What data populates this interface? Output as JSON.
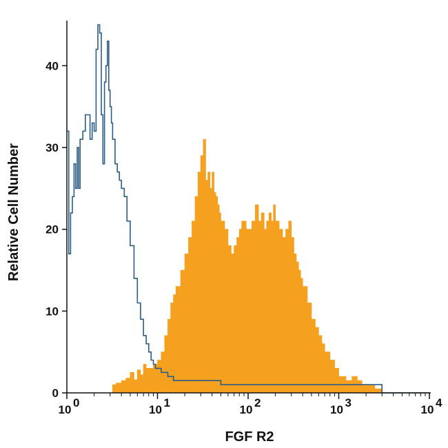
{
  "chart_data": {
    "type": "area",
    "xlabel": "FGF R2",
    "ylabel": "Relative Cell Number",
    "x_scale": "log",
    "xlim": [
      1,
      10000
    ],
    "ylim": [
      0,
      45
    ],
    "x_ticks": [
      {
        "value": 1,
        "base": "10",
        "exp": "0"
      },
      {
        "value": 10,
        "base": "10",
        "exp": "1"
      },
      {
        "value": 100,
        "base": "10",
        "exp": "2"
      },
      {
        "value": 1000,
        "base": "10",
        "exp": "3"
      },
      {
        "value": 10000,
        "base": "10",
        "exp": "4"
      }
    ],
    "y_ticks": [
      0,
      10,
      20,
      30,
      40
    ],
    "grid": false,
    "series": [
      {
        "kind": "filled",
        "color": "#f5a01f",
        "x": [
          3.2,
          3.5,
          4,
          4.5,
          5,
          5.5,
          6,
          6.5,
          7,
          7.5,
          8,
          9,
          10,
          11,
          12,
          13,
          14,
          15,
          16,
          18,
          20,
          22,
          24,
          26,
          28,
          30,
          32,
          34,
          36,
          38,
          40,
          42,
          44,
          46,
          48,
          50,
          55,
          60,
          65,
          70,
          75,
          80,
          85,
          90,
          95,
          100,
          110,
          120,
          130,
          140,
          150,
          160,
          170,
          180,
          190,
          200,
          220,
          240,
          260,
          280,
          300,
          320,
          340,
          360,
          380,
          400,
          450,
          500,
          550,
          600,
          650,
          700,
          800,
          900,
          1000,
          1100,
          1200,
          1400,
          1600,
          1800,
          2000,
          2500,
          3000
        ],
        "y": [
          1,
          1.2,
          1.5,
          1.8,
          2.5,
          1.6,
          2.8,
          2.2,
          3.5,
          3,
          3,
          3.5,
          4,
          5,
          7,
          9,
          11,
          12,
          13,
          15,
          17,
          19,
          21,
          24,
          27,
          29,
          31,
          26,
          27,
          25,
          27,
          24.5,
          24,
          23,
          22,
          21,
          20,
          18,
          17,
          18,
          19,
          20,
          21,
          21,
          20,
          20,
          21,
          23,
          21,
          22,
          20,
          21,
          22,
          21,
          23,
          21,
          20,
          19,
          20,
          21,
          19,
          17,
          16,
          15,
          14,
          13,
          11,
          9,
          8,
          7,
          6,
          5,
          4,
          3,
          2,
          2,
          1.5,
          2,
          1.5,
          1,
          1,
          0.5,
          0
        ]
      },
      {
        "kind": "outline",
        "color": "#2b5c85",
        "x": [
          1,
          1.05,
          1.1,
          1.15,
          1.2,
          1.25,
          1.3,
          1.35,
          1.4,
          1.5,
          1.6,
          1.7,
          1.8,
          1.9,
          2,
          2.1,
          2.2,
          2.3,
          2.4,
          2.5,
          2.6,
          2.7,
          2.8,
          2.9,
          3,
          3.1,
          3.2,
          3.4,
          3.6,
          3.8,
          4,
          4.3,
          4.6,
          5,
          5.5,
          6,
          6.5,
          7,
          7.5,
          8,
          8.5,
          9,
          9.5,
          10,
          11,
          12,
          13,
          14,
          15,
          17,
          20,
          25,
          30,
          40,
          50,
          60,
          80,
          100,
          150,
          200,
          300,
          500,
          700,
          1000,
          1500,
          2000,
          2500,
          3000,
          5000,
          8000,
          10000
        ],
        "y": [
          32,
          17,
          22,
          24,
          28,
          25,
          30,
          25,
          31,
          32,
          34,
          34,
          31,
          33,
          32,
          42,
          45,
          44,
          34,
          28,
          38,
          40,
          43,
          37,
          35,
          33,
          31,
          28,
          27,
          26,
          25,
          24,
          21,
          18,
          14,
          11,
          9,
          7,
          6,
          5,
          4,
          3.5,
          3,
          3,
          2.5,
          2.5,
          2,
          2,
          1.5,
          1.5,
          1.5,
          1.5,
          1.5,
          1.5,
          1,
          1,
          1,
          1,
          1,
          1,
          1,
          1,
          1,
          1,
          1,
          1,
          1,
          0,
          0,
          0,
          0
        ]
      }
    ]
  }
}
